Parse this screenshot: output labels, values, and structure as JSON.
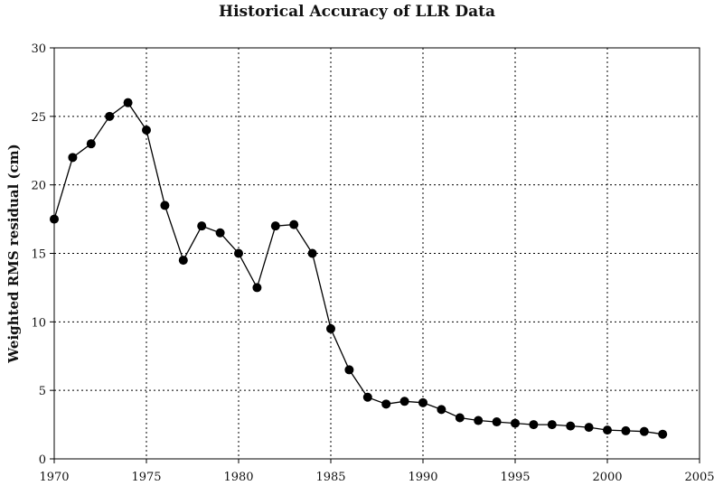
{
  "chart_data": {
    "type": "line",
    "title": "Historical Accuracy of LLR Data",
    "xlabel": "",
    "ylabel": "Weighted RMS residual (cm)",
    "xlim": [
      1970,
      2005
    ],
    "ylim": [
      0,
      30
    ],
    "xticks": [
      1970,
      1975,
      1980,
      1985,
      1990,
      1995,
      2000,
      2005
    ],
    "yticks": [
      0,
      5,
      10,
      15,
      20,
      25,
      30
    ],
    "grid": true,
    "grid_style": "dotted",
    "marker": "filled-circle",
    "line_color": "#000000",
    "series": [
      {
        "x": [
          1970,
          1971,
          1972,
          1973,
          1974,
          1975,
          1976,
          1977,
          1978,
          1979,
          1980,
          1981,
          1982,
          1983,
          1984,
          1985,
          1986,
          1987,
          1988,
          1989,
          1990,
          1991,
          1992,
          1993,
          1994,
          1995,
          1996,
          1997,
          1998,
          1999,
          2000,
          2001,
          2002,
          2003
        ],
        "y": [
          17.5,
          22,
          23,
          25,
          26,
          24,
          18.5,
          14.5,
          17,
          16.5,
          15,
          12.5,
          17,
          17.1,
          15,
          9.5,
          6.5,
          4.5,
          4,
          4.2,
          4.1,
          3.6,
          3,
          2.8,
          2.7,
          2.6,
          2.5,
          2.5,
          2.4,
          2.3,
          2.1,
          2.05,
          2,
          1.8
        ]
      }
    ]
  }
}
